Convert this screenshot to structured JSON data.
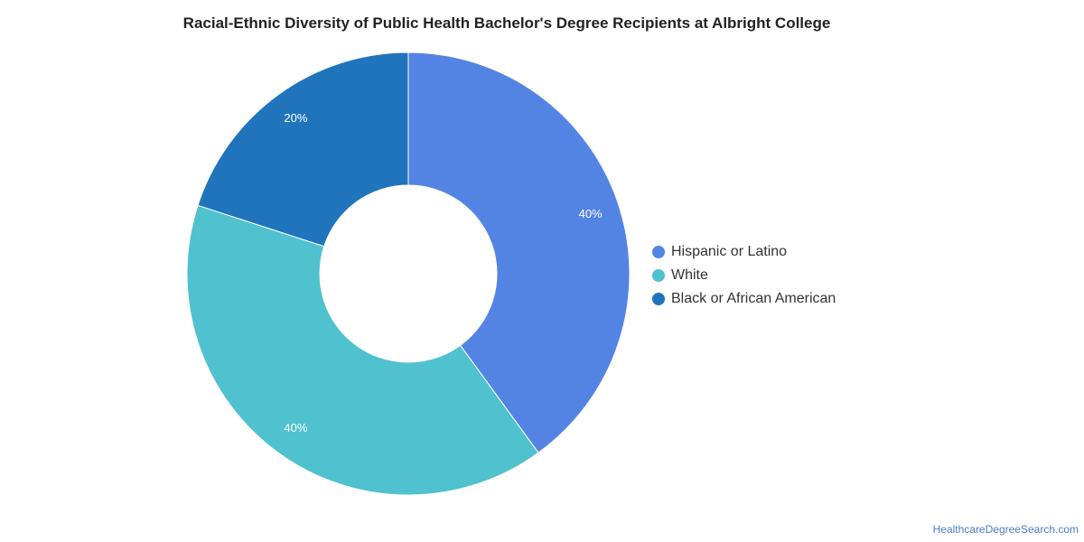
{
  "chart_data": {
    "type": "pie",
    "variant": "donut",
    "title": "Racial-Ethnic Diversity of Public Health Bachelor's Degree Recipients at Albright College",
    "slices": [
      {
        "label": "Hispanic or Latino",
        "value": 40,
        "display": "40%",
        "color": "#5484e3"
      },
      {
        "label": "White",
        "value": 40,
        "display": "40%",
        "color": "#50c1ce"
      },
      {
        "label": "Black or African American",
        "value": 20,
        "display": "20%",
        "color": "#1f74bc"
      }
    ],
    "legend_position": "right"
  },
  "credit": "HealthcareDegreeSearch.com"
}
